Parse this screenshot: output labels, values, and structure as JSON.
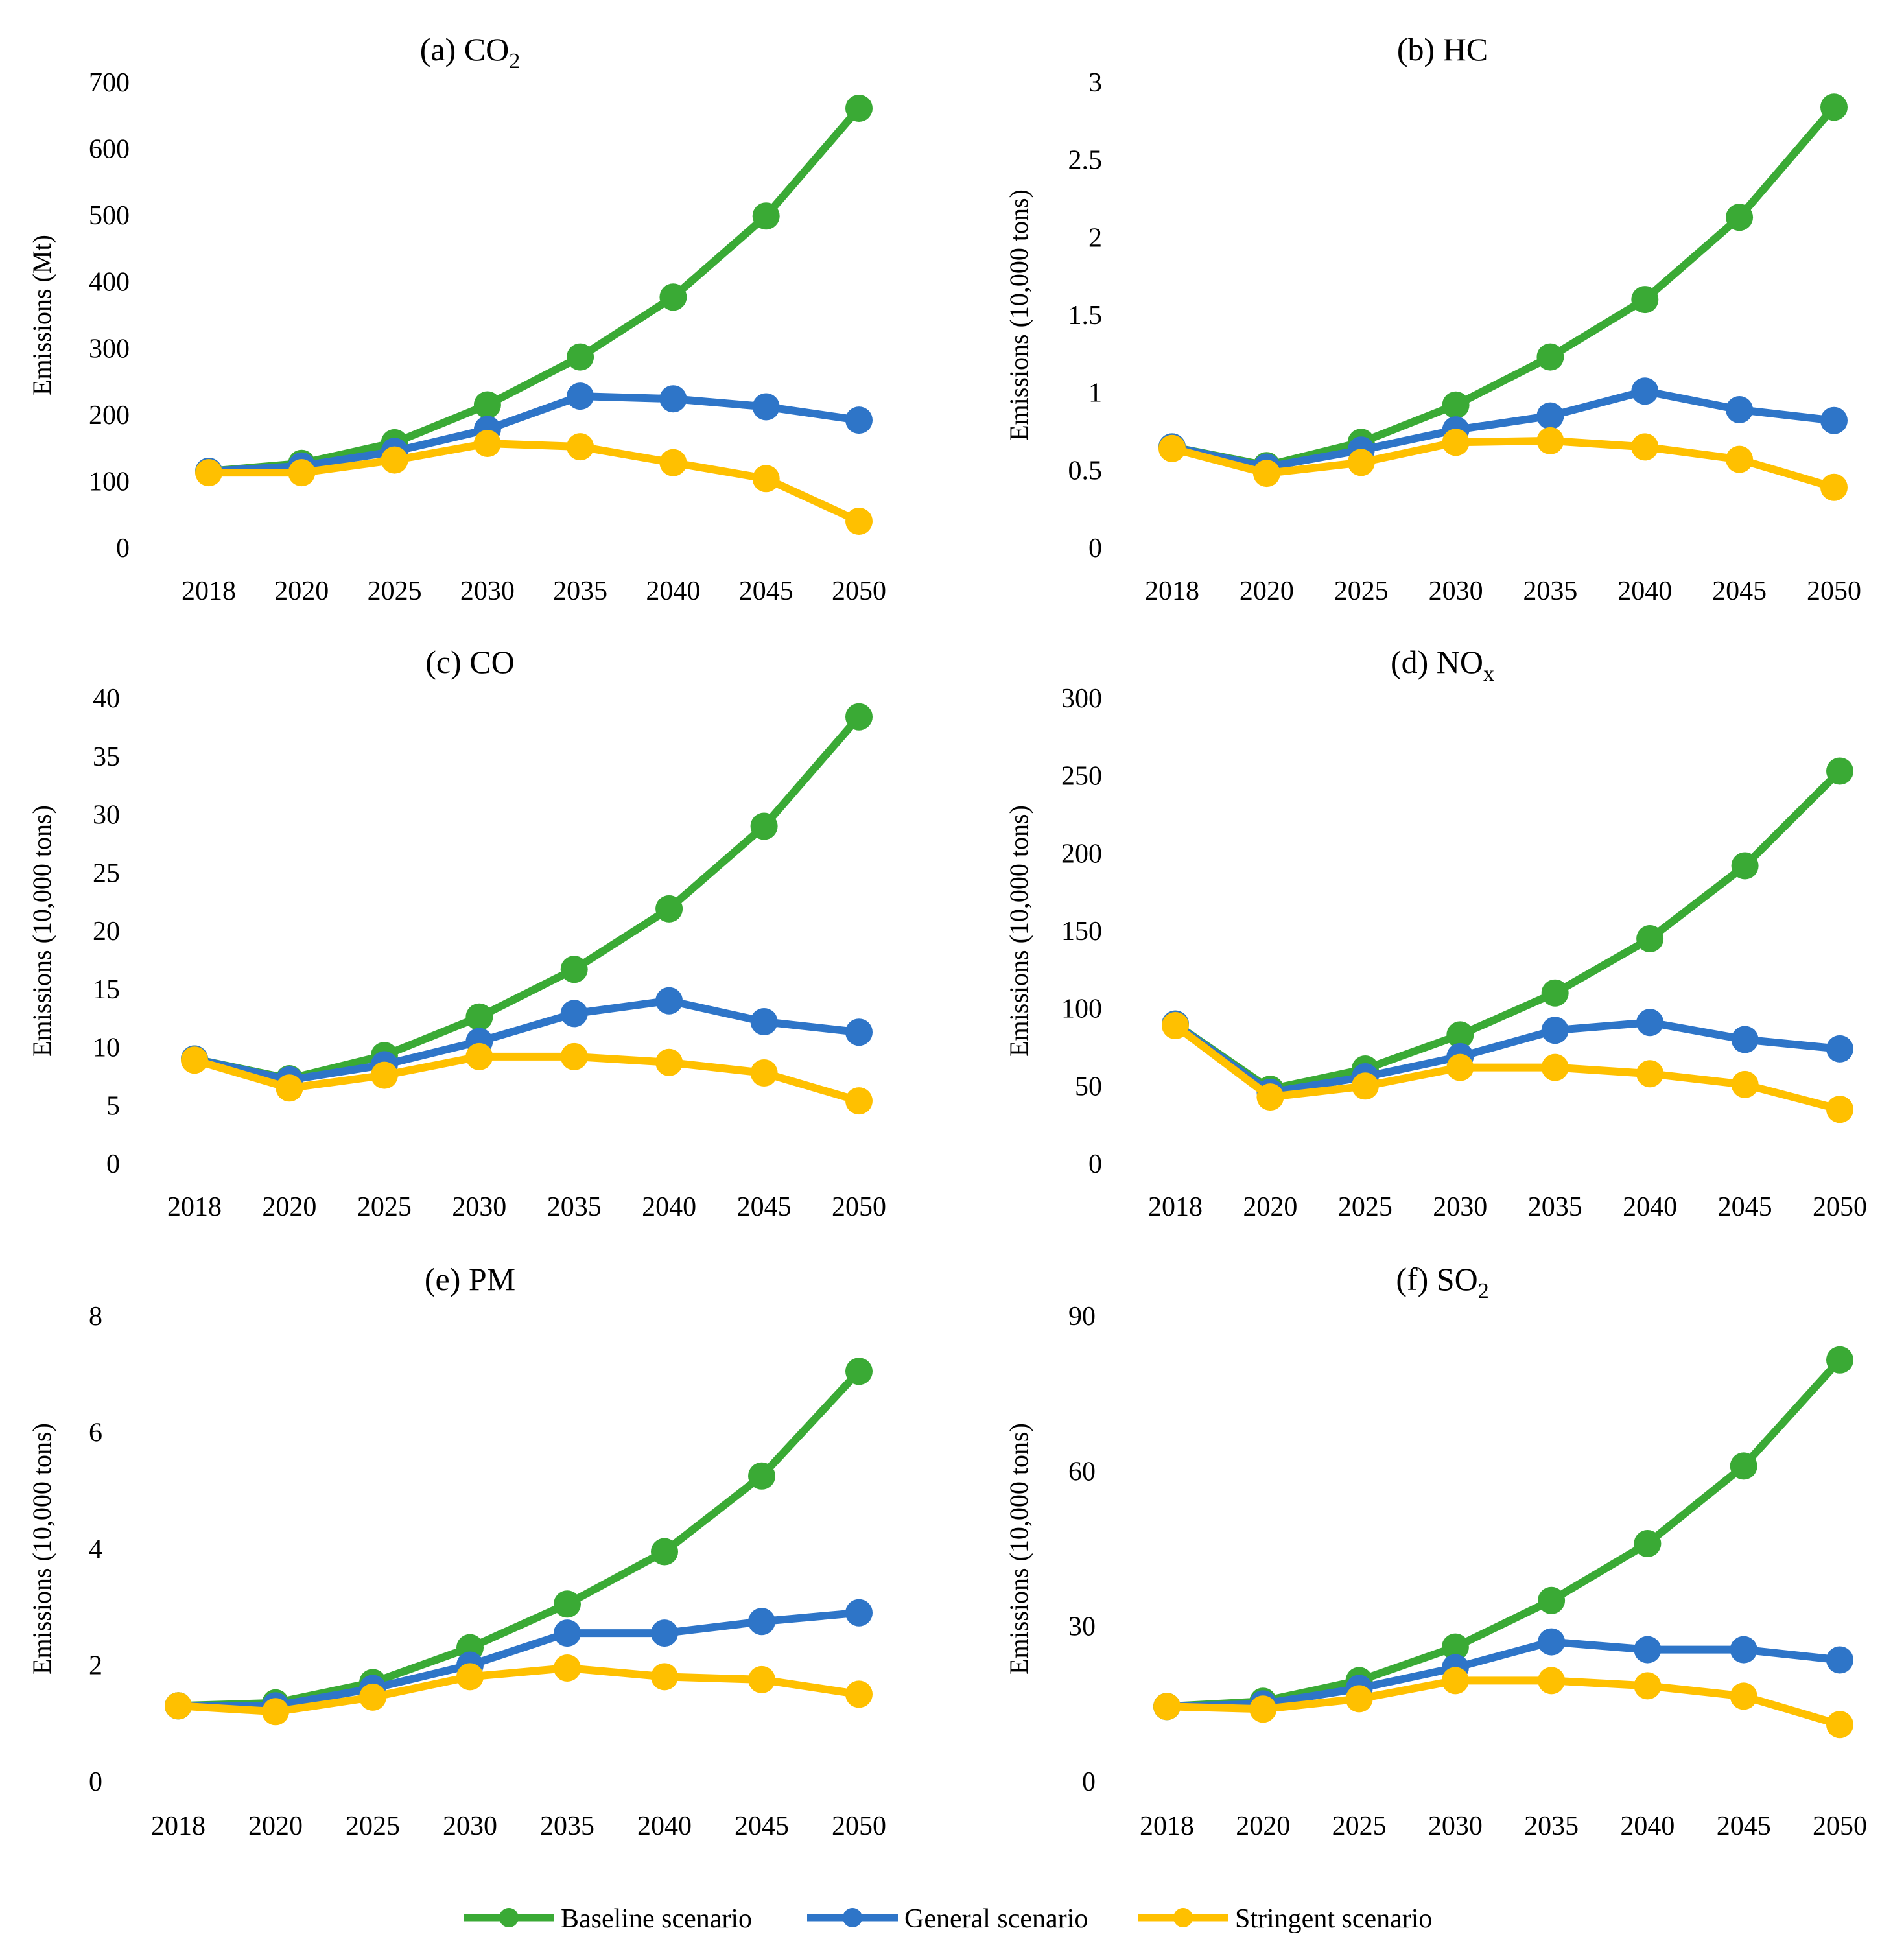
{
  "chart_data": [
    {
      "type": "line",
      "title": "(a) CO",
      "title_subscript": "2",
      "xlabel": "",
      "ylabel": "Emissions  (Mt)",
      "categories": [
        "2018",
        "2020",
        "2025",
        "2030",
        "2035",
        "2040",
        "2045",
        "2050"
      ],
      "ylim": [
        0,
        700
      ],
      "yticks": [
        0,
        100,
        200,
        300,
        400,
        500,
        600,
        700
      ],
      "ytick_labels": [
        "0",
        "100",
        "200",
        "300",
        "400",
        "500",
        "600",
        "700"
      ],
      "series": [
        {
          "name": "Baseline scenario",
          "values": [
            115,
            127,
            158,
            215,
            287,
            377,
            499,
            661
          ]
        },
        {
          "name": "General scenario",
          "values": [
            115,
            123,
            145,
            178,
            228,
            224,
            212,
            192
          ]
        },
        {
          "name": "Stringent scenario",
          "values": [
            113,
            113,
            132,
            157,
            152,
            128,
            104,
            40
          ]
        }
      ]
    },
    {
      "type": "line",
      "title": "(b) HC",
      "title_subscript": "",
      "xlabel": "",
      "ylabel": "Emissions (10,000 tons)",
      "categories": [
        "2018",
        "2020",
        "2025",
        "2030",
        "2035",
        "2040",
        "2045",
        "2050"
      ],
      "ylim": [
        0,
        3
      ],
      "yticks": [
        0,
        0.5,
        1,
        1.5,
        2,
        2.5,
        3
      ],
      "ytick_labels": [
        "0",
        "0.5",
        "1",
        "1.5",
        "2",
        "2.5",
        "3"
      ],
      "series": [
        {
          "name": "Baseline scenario",
          "values": [
            0.65,
            0.53,
            0.68,
            0.92,
            1.23,
            1.6,
            2.13,
            2.84
          ]
        },
        {
          "name": "General scenario",
          "values": [
            0.65,
            0.52,
            0.63,
            0.76,
            0.85,
            1.01,
            0.89,
            0.82
          ]
        },
        {
          "name": "Stringent scenario",
          "values": [
            0.64,
            0.48,
            0.55,
            0.68,
            0.69,
            0.65,
            0.57,
            0.39
          ]
        }
      ]
    },
    {
      "type": "line",
      "title": "(c) CO",
      "title_subscript": "",
      "xlabel": "",
      "ylabel": "Emissions (10,000 tons)",
      "categories": [
        "2018",
        "2020",
        "2025",
        "2030",
        "2035",
        "2040",
        "2045",
        "2050"
      ],
      "ylim": [
        0,
        40
      ],
      "yticks": [
        0,
        5,
        10,
        15,
        20,
        25,
        30,
        35,
        40
      ],
      "ytick_labels": [
        "0",
        "5",
        "10",
        "15",
        "20",
        "25",
        "30",
        "35",
        "40"
      ],
      "series": [
        {
          "name": "Baseline scenario",
          "values": [
            9,
            7.3,
            9.3,
            12.6,
            16.7,
            21.9,
            29,
            38.4
          ]
        },
        {
          "name": "General scenario",
          "values": [
            9,
            7.2,
            8.5,
            10.5,
            12.9,
            14,
            12.2,
            11.3
          ]
        },
        {
          "name": "Stringent scenario",
          "values": [
            8.9,
            6.5,
            7.6,
            9.2,
            9.2,
            8.7,
            7.8,
            5.4
          ]
        }
      ]
    },
    {
      "type": "line",
      "title": "(d) NO",
      "title_subscript": "x",
      "xlabel": "",
      "ylabel": "Emissions (10,000 tons)",
      "categories": [
        "2018",
        "2020",
        "2025",
        "2030",
        "2035",
        "2040",
        "2045",
        "2050"
      ],
      "ylim": [
        0,
        300
      ],
      "yticks": [
        0,
        50,
        100,
        150,
        200,
        250,
        300
      ],
      "ytick_labels": [
        "0",
        "50",
        "100",
        "150",
        "200",
        "250",
        "300"
      ],
      "series": [
        {
          "name": "Baseline scenario",
          "values": [
            90,
            48,
            61,
            83,
            110,
            145,
            192,
            253
          ]
        },
        {
          "name": "General scenario",
          "values": [
            90,
            46,
            56,
            69,
            86,
            91,
            80,
            74
          ]
        },
        {
          "name": "Stringent scenario",
          "values": [
            89,
            43,
            50,
            62,
            62,
            58,
            51,
            35
          ]
        }
      ]
    },
    {
      "type": "line",
      "title": "(e) PM",
      "title_subscript": "",
      "xlabel": "",
      "ylabel": "Emissions (10,000 tons)",
      "categories": [
        "2018",
        "2020",
        "2025",
        "2030",
        "2035",
        "2040",
        "2045",
        "2050"
      ],
      "ylim": [
        0,
        8
      ],
      "yticks": [
        0,
        2,
        4,
        6,
        8
      ],
      "ytick_labels": [
        "0",
        "2",
        "4",
        "6",
        "8"
      ],
      "series": [
        {
          "name": "Baseline scenario",
          "values": [
            1.3,
            1.35,
            1.7,
            2.3,
            3.05,
            3.95,
            5.25,
            7.05
          ]
        },
        {
          "name": "General scenario",
          "values": [
            1.3,
            1.3,
            1.6,
            2.0,
            2.55,
            2.55,
            2.75,
            2.9
          ]
        },
        {
          "name": "Stringent scenario",
          "values": [
            1.3,
            1.2,
            1.45,
            1.8,
            1.95,
            1.8,
            1.75,
            1.5
          ]
        }
      ]
    },
    {
      "type": "line",
      "title": "(f) SO",
      "title_subscript": "2",
      "xlabel": "",
      "ylabel": "Emissions (10,000 tons)",
      "categories": [
        "2018",
        "2020",
        "2025",
        "2030",
        "2035",
        "2040",
        "2045",
        "2050"
      ],
      "ylim": [
        0,
        90
      ],
      "yticks": [
        0,
        30,
        60,
        90
      ],
      "ytick_labels": [
        "0",
        "30",
        "60",
        "90"
      ],
      "series": [
        {
          "name": "Baseline scenario",
          "values": [
            14.5,
            15.5,
            19.5,
            26,
            35,
            46,
            61,
            81.5
          ]
        },
        {
          "name": "General scenario",
          "values": [
            14.5,
            15,
            18,
            22,
            27,
            25.5,
            25.5,
            23.5
          ]
        },
        {
          "name": "Stringent scenario",
          "values": [
            14.5,
            14,
            16,
            19.5,
            19.5,
            18.5,
            16.5,
            11
          ]
        }
      ]
    }
  ],
  "legend": {
    "position": "bottom-center",
    "items": [
      {
        "label": "Baseline scenario",
        "color": "#3aaa35"
      },
      {
        "label": "General scenario",
        "color": "#2e75c8"
      },
      {
        "label": "Stringent scenario",
        "color": "#ffc000"
      }
    ]
  },
  "colors": {
    "baseline": "#3aaa35",
    "general": "#2e75c8",
    "stringent": "#ffc000"
  }
}
